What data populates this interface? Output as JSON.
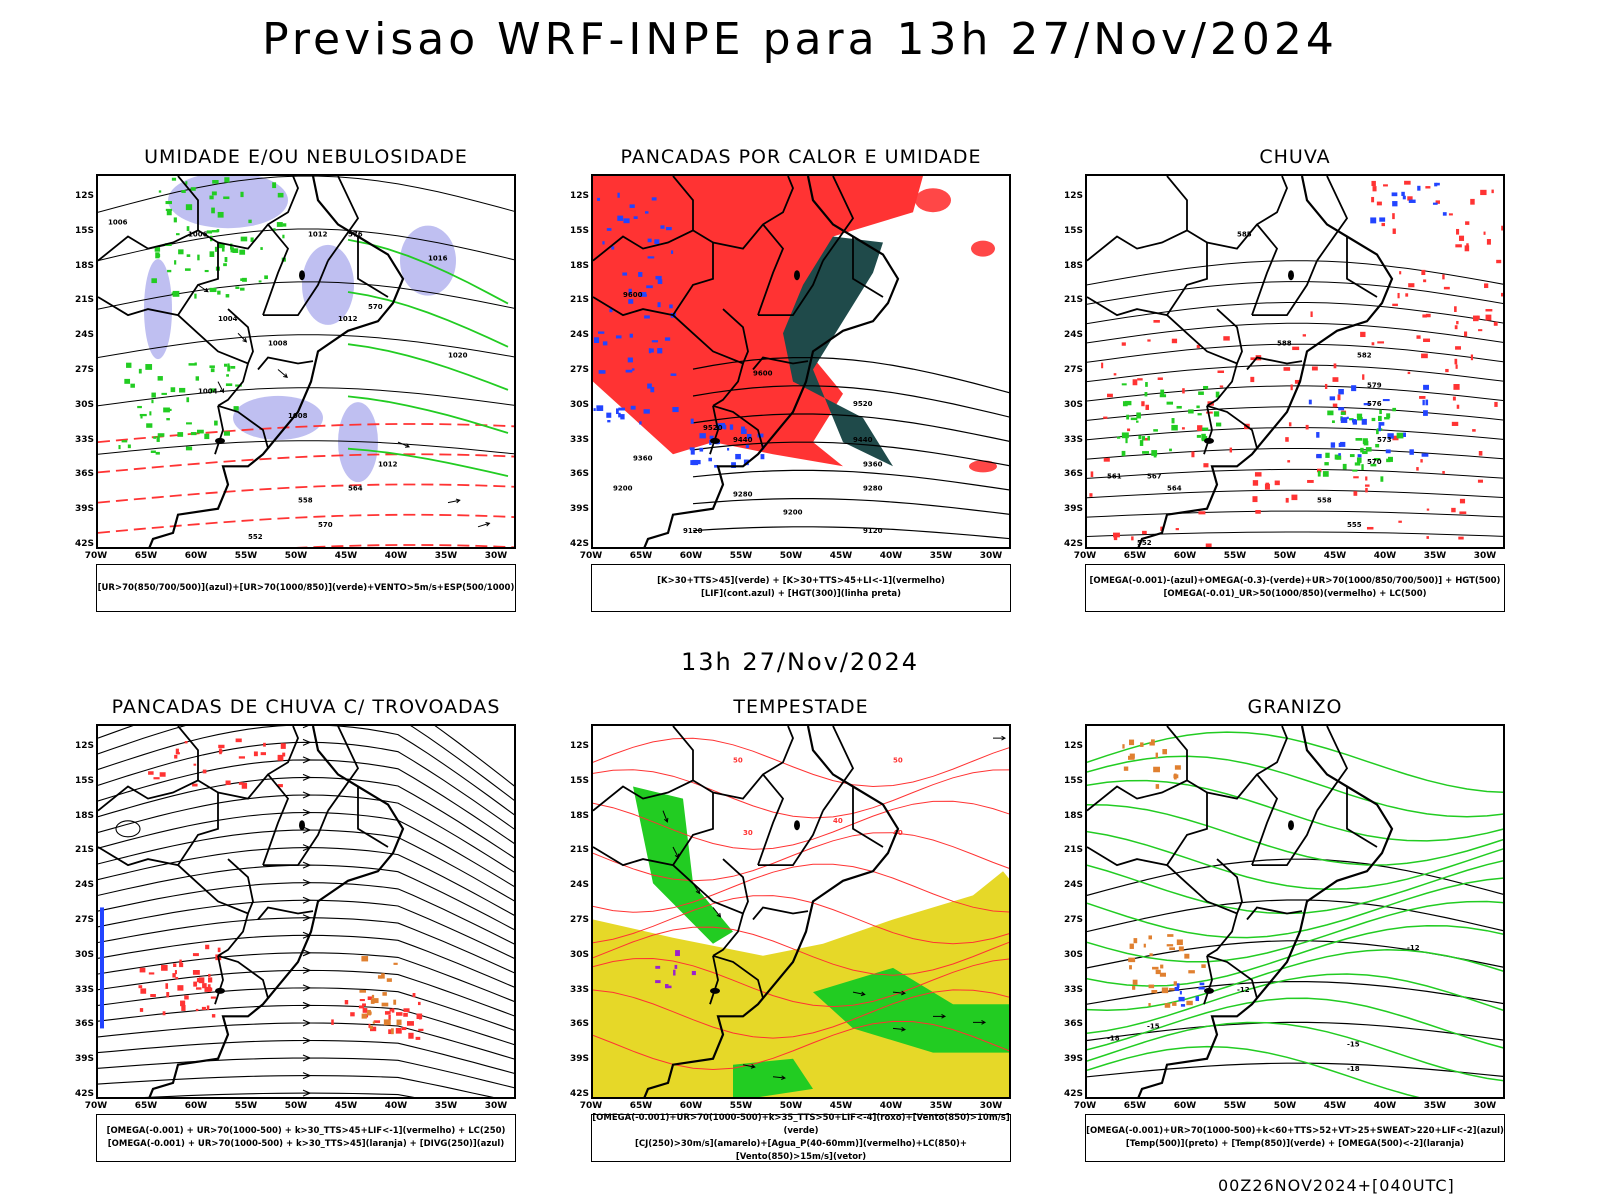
{
  "title": "Previsao WRF-INPE  para 13h 27/Nov/2024",
  "middle_time": "13h 27/Nov/2024",
  "footer": "00Z26NOV2024+[040UTC]",
  "axes": {
    "latitudes": [
      "12S",
      "15S",
      "18S",
      "21S",
      "24S",
      "27S",
      "30S",
      "33S",
      "36S",
      "39S",
      "42S"
    ],
    "longitudes": [
      "70W",
      "65W",
      "60W",
      "55W",
      "50W",
      "45W",
      "40W",
      "35W",
      "30W"
    ]
  },
  "colors": {
    "green": "#22cc22",
    "blue": "#2244ff",
    "red": "#ff3333",
    "lavender": "#b8b8f0",
    "dark_teal": "#1f4a4a",
    "yellow": "#e6d828",
    "orange": "#e08030",
    "purple": "#9a22cc",
    "black": "#000000"
  },
  "panels": [
    {
      "id": "umidade",
      "title": "UMIDADE E/OU NEBULOSIDADE",
      "legend": [
        "[UR>70(850/700/500)](azul)+[UR>70(1000/850)](verde)+VENTO>5m/s+ESP(500/1000)"
      ],
      "contour_labels": [
        "1006",
        "1006",
        "1012",
        "1016",
        "1004",
        "1008",
        "1012",
        "1020",
        "1004",
        "1008",
        "1012",
        "570",
        "564",
        "558",
        "552",
        "576",
        "570"
      ]
    },
    {
      "id": "pancadas-calor",
      "title": "PANCADAS POR CALOR E UMIDADE",
      "legend": [
        "[K>30+TTS>45](verde) + [K>30+TTS>45+LI<-1](vermelho)",
        "[LIF](cont.azul) + [HGT(300)](linha preta)"
      ],
      "contour_labels": [
        "9600",
        "9600",
        "9520",
        "9520",
        "9440",
        "9440",
        "9360",
        "9360",
        "9280",
        "9280",
        "9200",
        "9200",
        "9120",
        "9120"
      ]
    },
    {
      "id": "chuva",
      "title": "CHUVA",
      "legend": [
        "[OMEGA(-0.001)-(azul)+OMEGA(-0.3)-(verde)+UR>70(1000/850/700/500)] + HGT(500)",
        "[OMEGA(-0.01)_UR>50(1000/850)(vermelho) + LC(500)"
      ],
      "contour_labels": [
        "585",
        "588",
        "582",
        "579",
        "576",
        "573",
        "570",
        "567",
        "564",
        "561",
        "558",
        "555",
        "552"
      ]
    },
    {
      "id": "pancadas-trovoadas",
      "title": "PANCADAS DE CHUVA C/ TROVOADAS",
      "legend": [
        "[OMEGA(-0.001) + UR>70(1000-500) + k>30_TTS>45+LIF<-1](vermelho) + LC(250)",
        "[OMEGA(-0.001) + UR>70(1000-500) + k>30_TTS>45](laranja) + [DIVG(250)](azul)"
      ],
      "contour_labels": []
    },
    {
      "id": "tempestade",
      "title": "TEMPESTADE",
      "legend": [
        "[OMEGA(-0.001)+UR>70(1000-500)+k>35_TTS>50+LIF<-4](roxo)+[Vento(850)>10m/s](verde)",
        "[CJ(250)>30m/s](amarelo)+[Agua_P(40-60mm)](vermelho)+LC(850)+[Vento(850)>15m/s](vetor)"
      ],
      "contour_labels": [
        "50",
        "50",
        "40",
        "40",
        "30"
      ]
    },
    {
      "id": "granizo",
      "title": "GRANIZO",
      "legend": [
        "[OMEGA(-0.001)+UR>70(1000-500)+k<60+TTS>52+VT>25+SWEAT>220+LIF<-2](azul)",
        "[Temp(500)](preto) + [Temp(850)](verde) + [OMEGA(500)<-2](laranja)"
      ],
      "contour_labels": [
        "-12",
        "-12",
        "-15",
        "-15",
        "-18",
        "-18"
      ]
    }
  ]
}
